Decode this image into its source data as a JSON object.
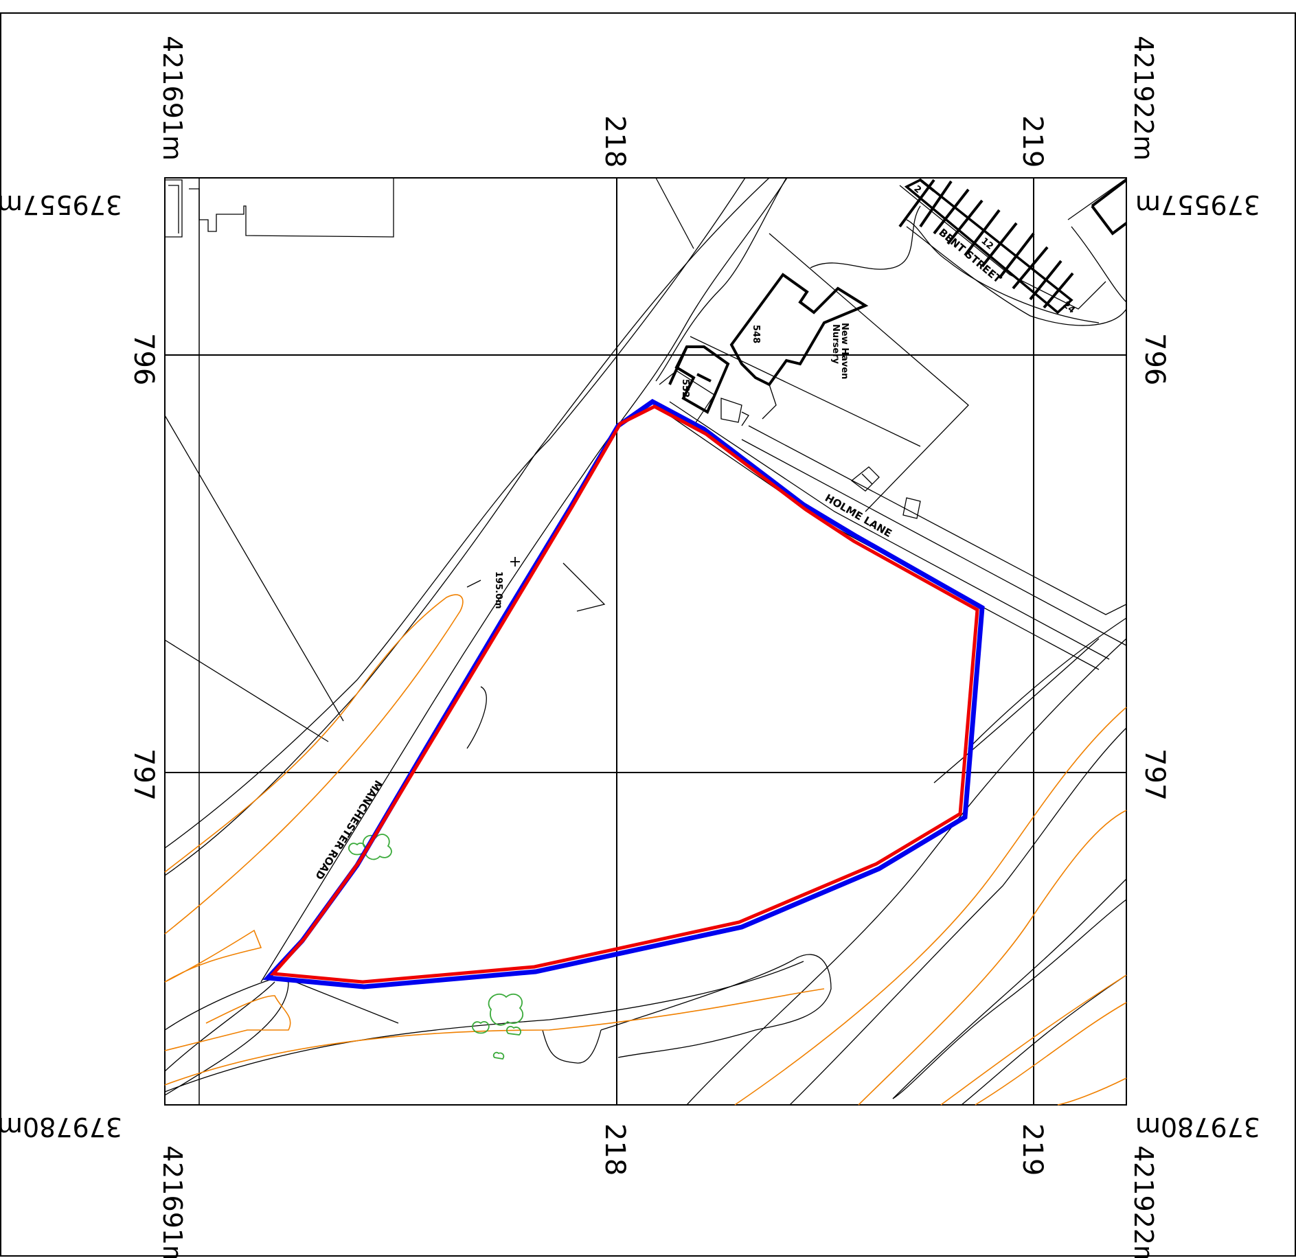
{
  "corners": {
    "easting_left": "421691m",
    "easting_right": "421922m",
    "northing_top": "379557m",
    "northing_bottom": "379780m"
  },
  "grid": {
    "top": [
      "218",
      "219"
    ],
    "bottom": [
      "218",
      "219"
    ],
    "left": [
      "796",
      "797"
    ],
    "right": [
      "796",
      "797"
    ]
  },
  "features": {
    "bent_street": "BENT STREET",
    "holme_lane": "HOLME LANE",
    "manchester_road_1": "MANCHESTER",
    "manchester_road_2": "ROAD",
    "new_haven": "New Haven",
    "nursery": "Nursery",
    "house_548": "548",
    "house_552": "552",
    "house_2": "2",
    "house_12": "12",
    "house_24": "24",
    "spot_height": "195.0m"
  },
  "colors": {
    "boundary_outer": "#0000ee",
    "boundary_inner": "#ee0000",
    "contour": "#f08000",
    "vegetation": "#3aaa3a",
    "base": "#000000"
  }
}
